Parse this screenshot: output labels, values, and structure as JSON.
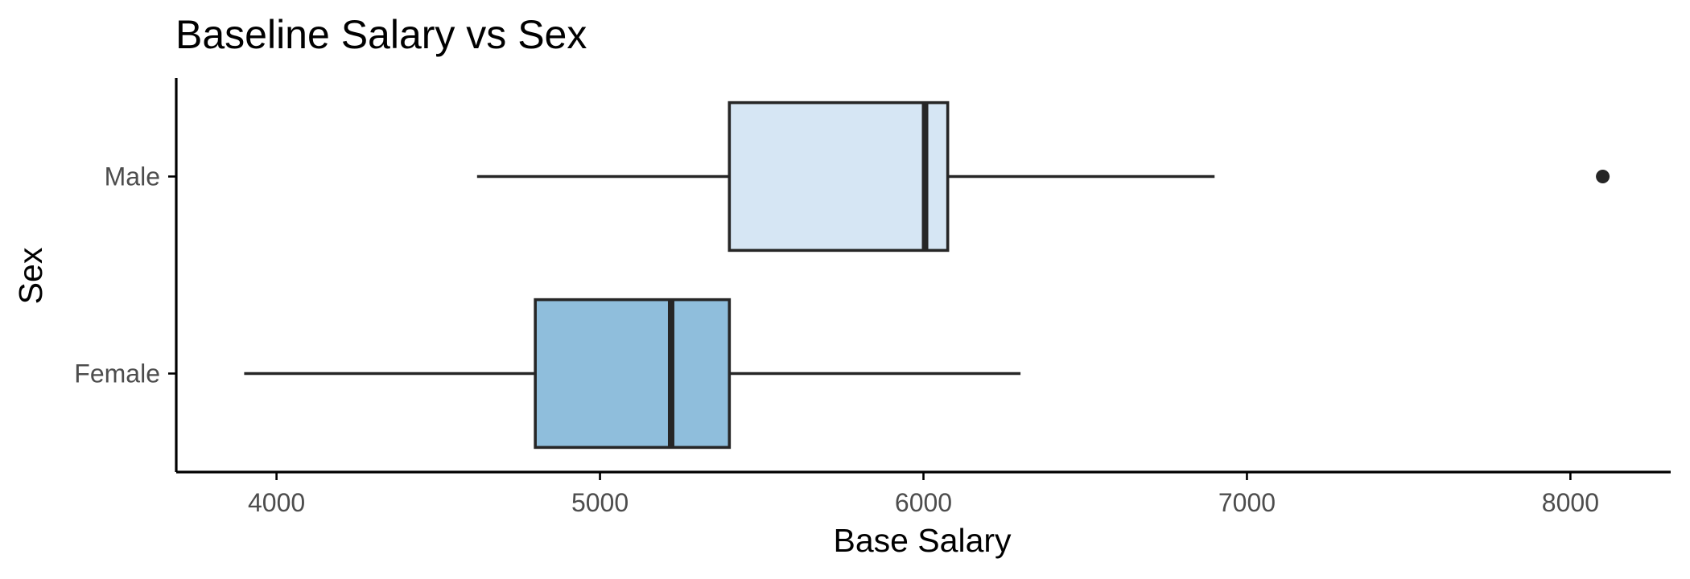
{
  "chart_data": {
    "type": "boxplot",
    "orientation": "horizontal",
    "title": "Baseline Salary vs Sex",
    "xlabel": "Base Salary",
    "ylabel": "Sex",
    "xlim": [
      3690,
      8310
    ],
    "xticks": [
      4000,
      5000,
      6000,
      7000,
      8000
    ],
    "grid": false,
    "legend": "none",
    "categories": [
      "Female",
      "Male"
    ],
    "series": [
      {
        "category": "Female",
        "whisker_low": 3900,
        "q1": 4800,
        "median": 5220,
        "q3": 5400,
        "whisker_high": 6300,
        "outliers": [],
        "color": "#8fbedc"
      },
      {
        "category": "Male",
        "whisker_low": 4620,
        "q1": 5400,
        "median": 6005,
        "q3": 6075,
        "whisker_high": 6900,
        "outliers": [
          8100
        ],
        "color": "#d6e6f4"
      }
    ]
  }
}
